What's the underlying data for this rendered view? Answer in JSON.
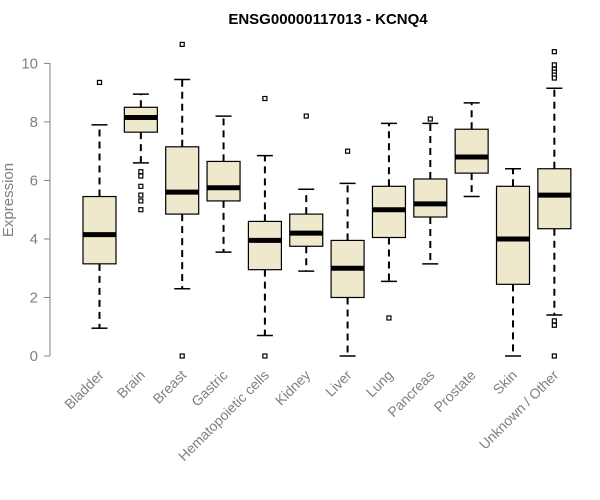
{
  "chart_data": {
    "type": "boxplot",
    "title": "ENSG00000117013 - KCNQ4",
    "xlabel": "",
    "ylabel": "Expression",
    "ylim": [
      0,
      10.8
    ],
    "yticks": [
      0,
      2,
      4,
      6,
      8,
      10
    ],
    "colors": {
      "box_fill": "#EEE8CD",
      "median": "#000000",
      "axis": "#808080",
      "text": "#808080"
    },
    "categories": [
      "Bladder",
      "Brain",
      "Breast",
      "Gastric",
      "Hematopoietic cells",
      "Kidney",
      "Liver",
      "Lung",
      "Pancreas",
      "Prostate",
      "Skin",
      "Unknown / Other"
    ],
    "boxes": [
      {
        "name": "Bladder",
        "whisker_low": 0.95,
        "q1": 3.15,
        "median": 4.15,
        "q3": 5.45,
        "whisker_high": 7.9,
        "outliers": [
          9.35
        ]
      },
      {
        "name": "Brain",
        "whisker_low": 6.6,
        "q1": 7.65,
        "median": 8.15,
        "q3": 8.5,
        "whisker_high": 8.95,
        "outliers": [
          6.3,
          6.15,
          5.8,
          5.5,
          5.3,
          5.0
        ]
      },
      {
        "name": "Breast",
        "whisker_low": 2.3,
        "q1": 4.85,
        "median": 5.6,
        "q3": 7.15,
        "whisker_high": 9.45,
        "outliers": [
          10.65,
          0.0
        ]
      },
      {
        "name": "Gastric",
        "whisker_low": 3.55,
        "q1": 5.3,
        "median": 5.75,
        "q3": 6.65,
        "whisker_high": 8.2,
        "outliers": []
      },
      {
        "name": "Hematopoietic cells",
        "whisker_low": 0.7,
        "q1": 2.95,
        "median": 3.95,
        "q3": 4.6,
        "whisker_high": 6.85,
        "outliers": [
          8.8,
          0.0
        ]
      },
      {
        "name": "Kidney",
        "whisker_low": 2.9,
        "q1": 3.75,
        "median": 4.2,
        "q3": 4.85,
        "whisker_high": 5.7,
        "outliers": [
          8.2
        ]
      },
      {
        "name": "Liver",
        "whisker_low": 0.0,
        "q1": 2.0,
        "median": 3.0,
        "q3": 3.95,
        "whisker_high": 5.9,
        "outliers": [
          7.0
        ]
      },
      {
        "name": "Lung",
        "whisker_low": 2.55,
        "q1": 4.05,
        "median": 5.0,
        "q3": 5.8,
        "whisker_high": 7.95,
        "outliers": [
          1.3
        ]
      },
      {
        "name": "Pancreas",
        "whisker_low": 3.15,
        "q1": 4.75,
        "median": 5.2,
        "q3": 6.05,
        "whisker_high": 7.95,
        "outliers": [
          8.1
        ]
      },
      {
        "name": "Prostate",
        "whisker_low": 5.45,
        "q1": 6.25,
        "median": 6.8,
        "q3": 7.75,
        "whisker_high": 8.65,
        "outliers": []
      },
      {
        "name": "Skin",
        "whisker_low": 0.0,
        "q1": 2.45,
        "median": 4.0,
        "q3": 5.8,
        "whisker_high": 6.4,
        "outliers": []
      },
      {
        "name": "Unknown / Other",
        "whisker_low": 1.4,
        "q1": 4.35,
        "median": 5.5,
        "q3": 6.4,
        "whisker_high": 9.15,
        "outliers": [
          10.4,
          9.95,
          9.8,
          9.7,
          9.6,
          9.5,
          1.2,
          1.05,
          0.0
        ]
      }
    ]
  }
}
